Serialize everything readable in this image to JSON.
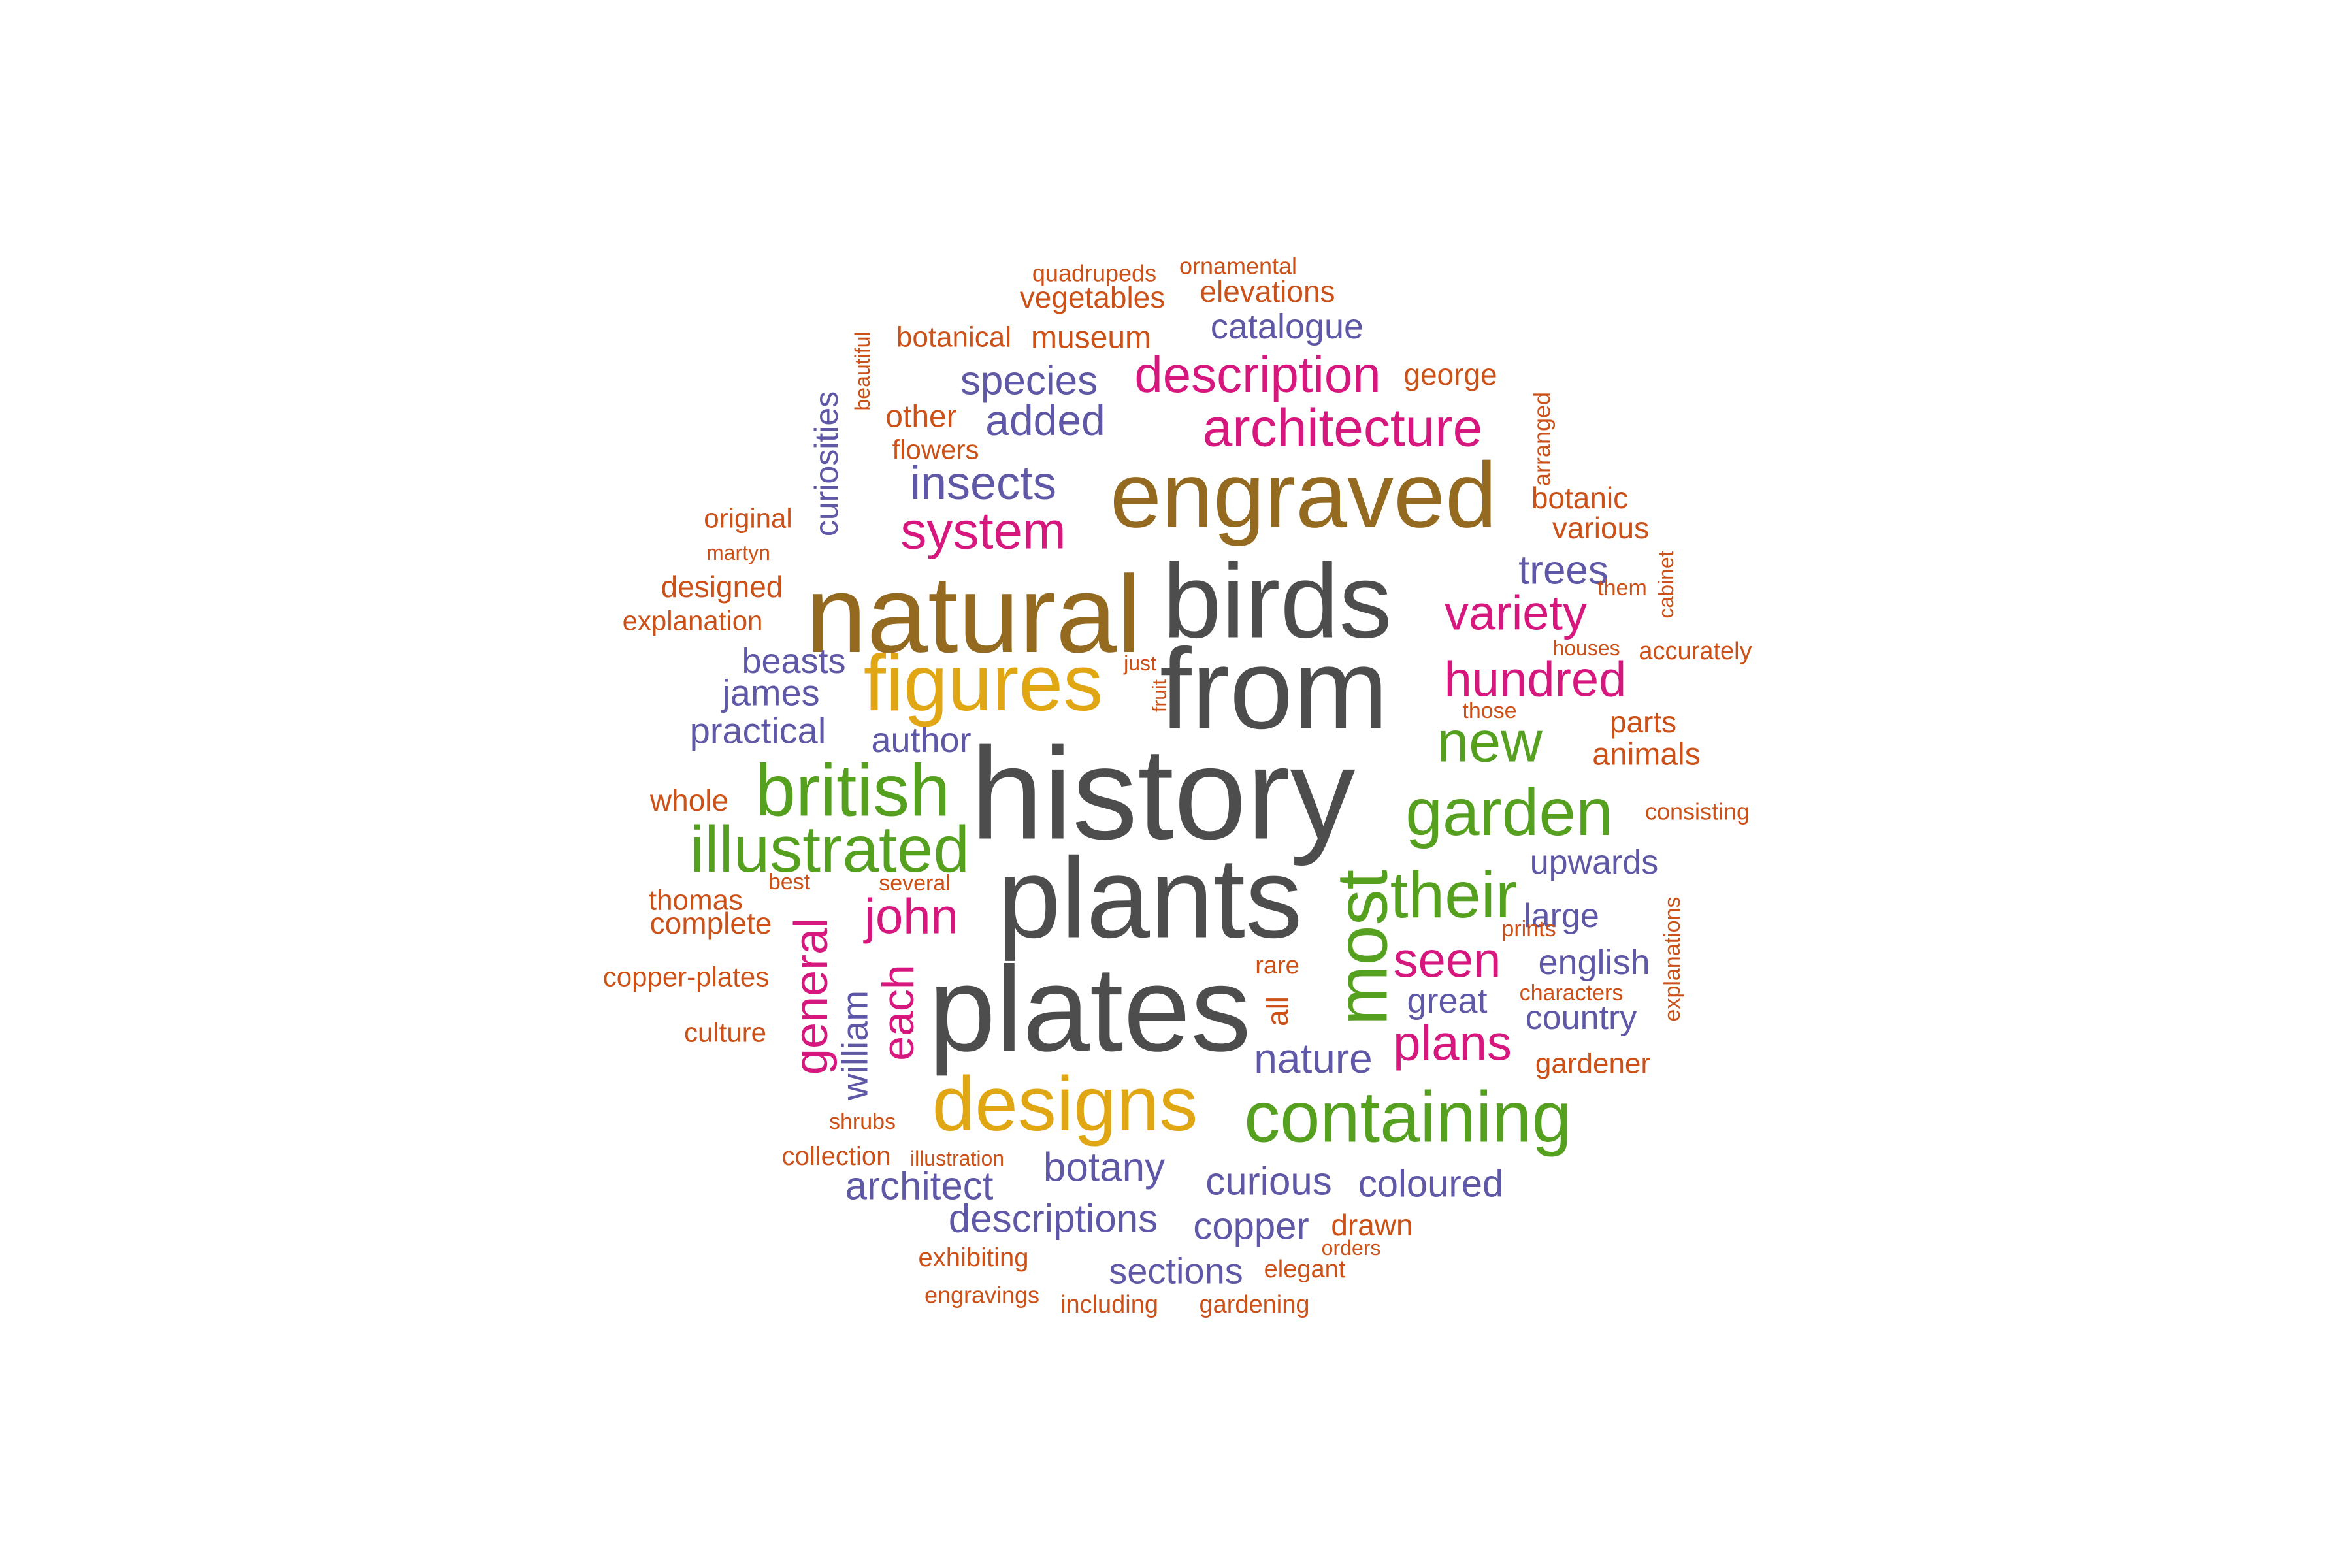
{
  "palette": {
    "gray": "#4d4d4d",
    "brown": "#946a20",
    "gold": "#e0a614",
    "green": "#56a020",
    "magenta": "#d6177d",
    "purple": "#5e58a6",
    "orange": "#cc5118"
  },
  "words": [
    {
      "text": "history",
      "color": "gray",
      "weight": 100
    },
    {
      "text": "plants",
      "color": "gray",
      "weight": 97
    },
    {
      "text": "plates",
      "color": "gray",
      "weight": 95
    },
    {
      "text": "from",
      "color": "gray",
      "weight": 91
    },
    {
      "text": "birds",
      "color": "gray",
      "weight": 90
    },
    {
      "text": "natural",
      "color": "brown",
      "weight": 88
    },
    {
      "text": "engraved",
      "color": "brown",
      "weight": 82
    },
    {
      "text": "figures",
      "color": "gold",
      "weight": 72
    },
    {
      "text": "designs",
      "color": "gold",
      "weight": 72
    },
    {
      "text": "most",
      "color": "green",
      "weight": 70
    },
    {
      "text": "containing",
      "color": "green",
      "weight": 68
    },
    {
      "text": "british",
      "color": "green",
      "weight": 66
    },
    {
      "text": "illustrated",
      "color": "green",
      "weight": 65
    },
    {
      "text": "garden",
      "color": "green",
      "weight": 65
    },
    {
      "text": "their",
      "color": "green",
      "weight": 64
    },
    {
      "text": "new",
      "color": "green",
      "weight": 60
    },
    {
      "text": "architecture",
      "color": "magenta",
      "weight": 58
    },
    {
      "text": "description",
      "color": "magenta",
      "weight": 57
    },
    {
      "text": "system",
      "color": "magenta",
      "weight": 56
    },
    {
      "text": "hundred",
      "color": "magenta",
      "weight": 55
    },
    {
      "text": "variety",
      "color": "magenta",
      "weight": 54
    },
    {
      "text": "john",
      "color": "magenta",
      "weight": 54
    },
    {
      "text": "seen",
      "color": "magenta",
      "weight": 54
    },
    {
      "text": "plans",
      "color": "magenta",
      "weight": 54
    },
    {
      "text": "general",
      "color": "magenta",
      "weight": 52
    },
    {
      "text": "each",
      "color": "magenta",
      "weight": 52
    },
    {
      "text": "insects",
      "color": "purple",
      "weight": 50
    },
    {
      "text": "added",
      "color": "purple",
      "weight": 48
    },
    {
      "text": "species",
      "color": "purple",
      "weight": 47
    },
    {
      "text": "trees",
      "color": "purple",
      "weight": 47
    },
    {
      "text": "nature",
      "color": "purple",
      "weight": 47
    },
    {
      "text": "botany",
      "color": "purple",
      "weight": 47
    },
    {
      "text": "architect",
      "color": "purple",
      "weight": 46
    },
    {
      "text": "descriptions",
      "color": "purple",
      "weight": 46
    },
    {
      "text": "curious",
      "color": "purple",
      "weight": 46
    },
    {
      "text": "coloured",
      "color": "purple",
      "weight": 45
    },
    {
      "text": "copper",
      "color": "purple",
      "weight": 45
    },
    {
      "text": "sections",
      "color": "purple",
      "weight": 44
    },
    {
      "text": "william",
      "color": "purple",
      "weight": 44
    },
    {
      "text": "james",
      "color": "purple",
      "weight": 44
    },
    {
      "text": "beasts",
      "color": "purple",
      "weight": 43
    },
    {
      "text": "practical",
      "color": "purple",
      "weight": 43
    },
    {
      "text": "author",
      "color": "purple",
      "weight": 42
    },
    {
      "text": "catalogue",
      "color": "purple",
      "weight": 42
    },
    {
      "text": "curiosities",
      "color": "purple",
      "weight": 42
    },
    {
      "text": "upwards",
      "color": "purple",
      "weight": 41
    },
    {
      "text": "large",
      "color": "purple",
      "weight": 41
    },
    {
      "text": "english",
      "color": "purple",
      "weight": 41
    },
    {
      "text": "great",
      "color": "purple",
      "weight": 41
    },
    {
      "text": "country",
      "color": "purple",
      "weight": 40
    },
    {
      "text": "elevations",
      "color": "orange",
      "weight": 38
    },
    {
      "text": "vegetables",
      "color": "orange",
      "weight": 38
    },
    {
      "text": "museum",
      "color": "orange",
      "weight": 38
    },
    {
      "text": "botanical",
      "color": "orange",
      "weight": 37
    },
    {
      "text": "george",
      "color": "orange",
      "weight": 37
    },
    {
      "text": "other",
      "color": "orange",
      "weight": 37
    },
    {
      "text": "flowers",
      "color": "orange",
      "weight": 36
    },
    {
      "text": "botanic",
      "color": "orange",
      "weight": 37
    },
    {
      "text": "various",
      "color": "orange",
      "weight": 37
    },
    {
      "text": "original",
      "color": "orange",
      "weight": 36
    },
    {
      "text": "designed",
      "color": "orange",
      "weight": 36
    },
    {
      "text": "explanation",
      "color": "orange",
      "weight": 36
    },
    {
      "text": "parts",
      "color": "orange",
      "weight": 37
    },
    {
      "text": "animals",
      "color": "orange",
      "weight": 37
    },
    {
      "text": "whole",
      "color": "orange",
      "weight": 36
    },
    {
      "text": "thomas",
      "color": "orange",
      "weight": 36
    },
    {
      "text": "complete",
      "color": "orange",
      "weight": 36
    },
    {
      "text": "copper-plates",
      "color": "orange",
      "weight": 35
    },
    {
      "text": "culture",
      "color": "orange",
      "weight": 35
    },
    {
      "text": "gardener",
      "color": "orange",
      "weight": 36
    },
    {
      "text": "drawn",
      "color": "orange",
      "weight": 37
    },
    {
      "text": "collection",
      "color": "orange",
      "weight": 35
    },
    {
      "text": "exhibiting",
      "color": "orange",
      "weight": 35
    },
    {
      "text": "engravings",
      "color": "orange",
      "weight": 33
    },
    {
      "text": "including",
      "color": "orange",
      "weight": 34
    },
    {
      "text": "gardening",
      "color": "orange",
      "weight": 34
    },
    {
      "text": "rare",
      "color": "orange",
      "weight": 34
    },
    {
      "text": "all",
      "color": "orange",
      "weight": 36
    },
    {
      "text": "accurately",
      "color": "orange",
      "weight": 33
    },
    {
      "text": "consisting",
      "color": "orange",
      "weight": 32
    },
    {
      "text": "quadrupeds",
      "color": "orange",
      "weight": 31
    },
    {
      "text": "ornamental",
      "color": "orange",
      "weight": 31
    },
    {
      "text": "beautiful",
      "color": "orange",
      "weight": 30
    },
    {
      "text": "arranged",
      "color": "orange",
      "weight": 32
    },
    {
      "text": "cabinet",
      "color": "orange",
      "weight": 30
    },
    {
      "text": "explanations",
      "color": "orange",
      "weight": 31
    },
    {
      "text": "martyn",
      "color": "orange",
      "weight": 31
    },
    {
      "text": "them",
      "color": "orange",
      "weight": 31
    },
    {
      "text": "houses",
      "color": "orange",
      "weight": 30
    },
    {
      "text": "just",
      "color": "orange",
      "weight": 30
    },
    {
      "text": "fruit",
      "color": "orange",
      "weight": 30
    },
    {
      "text": "those",
      "color": "orange",
      "weight": 31
    },
    {
      "text": "best",
      "color": "orange",
      "weight": 31
    },
    {
      "text": "several",
      "color": "orange",
      "weight": 31
    },
    {
      "text": "prints",
      "color": "orange",
      "weight": 31
    },
    {
      "text": "characters",
      "color": "orange",
      "weight": 31
    },
    {
      "text": "shrubs",
      "color": "orange",
      "weight": 31
    },
    {
      "text": "illustration",
      "color": "orange",
      "weight": 30
    },
    {
      "text": "elegant",
      "color": "orange",
      "weight": 32
    },
    {
      "text": "orders",
      "color": "orange",
      "weight": 30
    }
  ]
}
